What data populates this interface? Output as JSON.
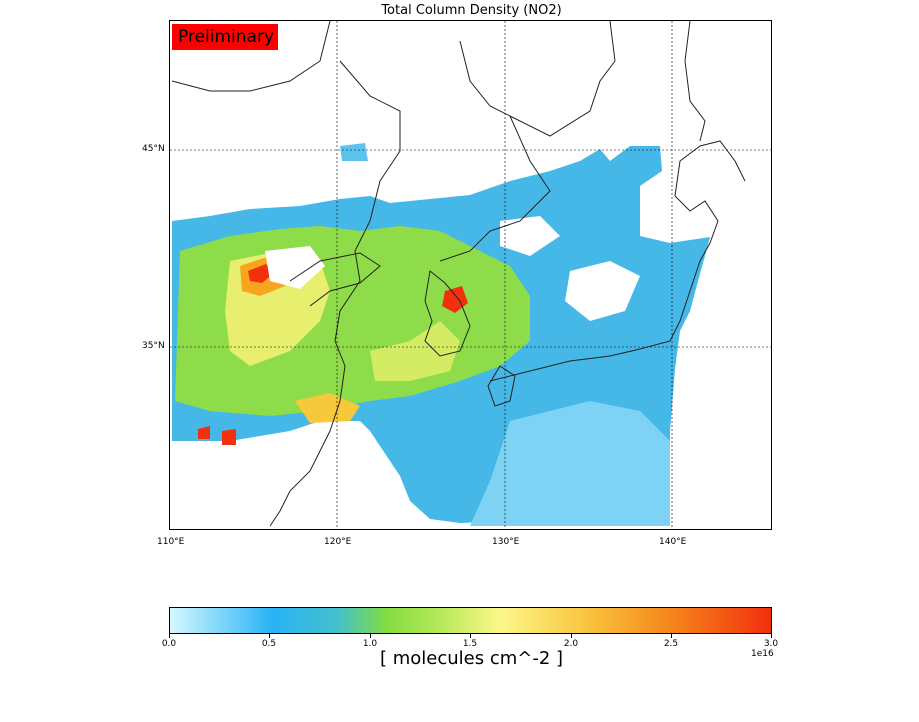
{
  "map": {
    "title": "Total Column Density (NO2)",
    "badge": "Preliminary",
    "lat_labels": [
      "45°N",
      "35°N"
    ],
    "lon_labels": [
      "110°E",
      "120°E",
      "130°E",
      "140°E"
    ],
    "extent": {
      "lon_min": 110,
      "lon_max": 146,
      "lat_min": 26,
      "lat_max": 51
    }
  },
  "colorbar": {
    "ticks": [
      "0.0",
      "0.5",
      "1.0",
      "1.5",
      "2.0",
      "2.5",
      "3.0"
    ],
    "tick_values": [
      0.0,
      0.5,
      1.0,
      1.5,
      2.0,
      2.5,
      3.0
    ],
    "range": [
      0.0,
      3.0
    ],
    "exponent": "1e16",
    "unit": "[ molecules cm^-2 ]"
  },
  "colors": {
    "low": "#d4f8ff",
    "blue": "#29b3f5",
    "green": "#82dc3f",
    "yellow": "#fdf78a",
    "orange": "#f5871c",
    "high": "#f2300d",
    "badge": "#ff0000"
  }
}
